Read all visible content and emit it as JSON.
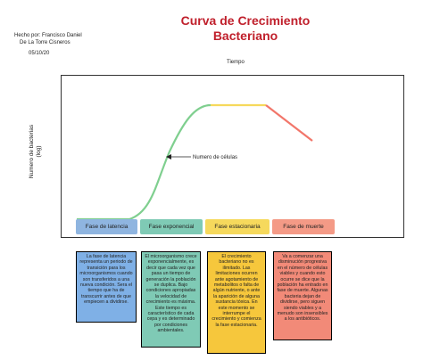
{
  "header": {
    "title_line1": "Curva de Crecimiento",
    "title_line2": "Bacteriano",
    "author_line1": "Hecho por: Francisco Daniel",
    "author_line2": "De La Torre Cisneros",
    "date": "05/10/20"
  },
  "axes": {
    "x_label": "Tiempo",
    "y_label_line1": "Numero de bacterias",
    "y_label_line2": "(log)"
  },
  "annotation": {
    "cells_label": "Numero de células"
  },
  "colors": {
    "title": "#c0202c",
    "curve_green": "#7fcf8f",
    "curve_yellow": "#f6d95c",
    "curve_red": "#f2766a",
    "lag": "#8fb5e0",
    "exponential": "#7fcab5",
    "stationary": "#f6d95c",
    "death": "#f49a86"
  },
  "phases": [
    {
      "label": "Fase de latencia",
      "description": "La fase de latencia representa un periodo de transición para los microorganismos cuando son transferidos a una nueva condición. Sera el tiempo que ha de transcurrir antes de que empiecen a dividirse."
    },
    {
      "label": "Fase exponencial",
      "description": "El microorganismo crece exponencialmente, es decir que cada vez que pasa un tiempo de generación la población se duplica. Bajo condiciones apropiadas la velocidad de crecimiento es máxima. Este tiempo es característico de cada cepa y es determinado por condiciones ambientales."
    },
    {
      "label": "Fase estacionaria",
      "description": "El crecimiento bacteriano no es ilimitado. Las limitaciones ocurren ante agotamiento de metabolitos o falta de algún nutriente, o ante la aparición de alguna sustancia tóxica. En este momento se interrumpe el crecimiento y comienza la fase estacionaria."
    },
    {
      "label": "Fase de muerte",
      "description": "Va a comenzar una disminución progresiva en el número de células viables y cuando esto ocurre se dice que la población ha entrado en fase de muerte. Algunas bacteria dejan de dividirse, pero siguen siendo viables y a menudo son insensibles a los antibióticos."
    }
  ]
}
